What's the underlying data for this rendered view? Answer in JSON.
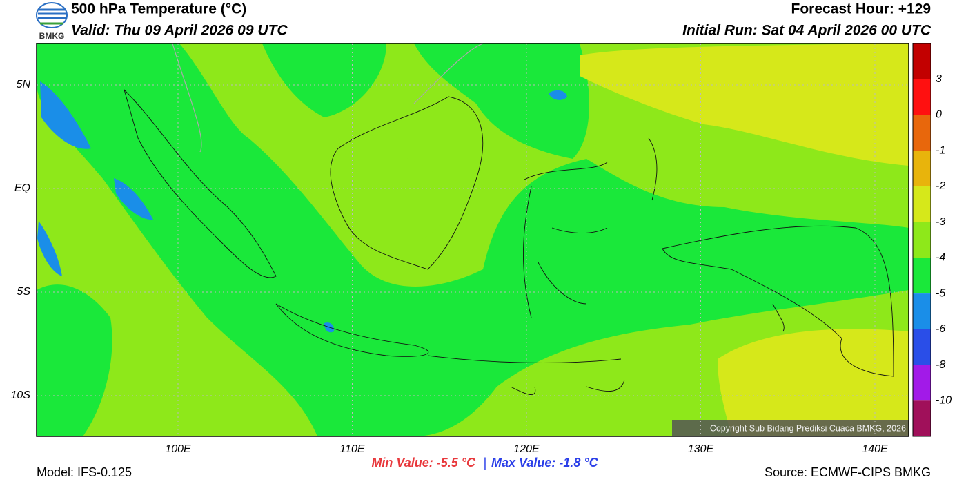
{
  "header": {
    "title": "500 hPa Temperature (°C)",
    "valid": "Valid: Thu 09 April 2026 09 UTC",
    "forecast_hour": "Forecast Hour: +129",
    "initial_run": "Initial Run: Sat 04 April 2026 00 UTC",
    "logo": "BMKG"
  },
  "map": {
    "lat_labels": [
      "5N",
      "EQ",
      "5S",
      "10S"
    ],
    "lon_labels": [
      "100E",
      "110E",
      "120E",
      "130E",
      "140E"
    ],
    "copyright": "Copyright Sub Bidang Prediksi Cuaca BMKG, 2026"
  },
  "colorbar": {
    "colors": [
      "#c20000",
      "#ff1010",
      "#e8670c",
      "#e8b40c",
      "#d6e81a",
      "#8ee81a",
      "#1ae83a",
      "#1a8ee8",
      "#2a4ee8",
      "#a21ae8",
      "#a0105a"
    ],
    "labels": [
      "3",
      "0",
      "-1",
      "-2",
      "-3",
      "-4",
      "-5",
      "-6",
      "-8",
      "-10"
    ]
  },
  "footer": {
    "model": "Model: IFS-0.125",
    "min": "Min Value: -5.5 °C",
    "separator": "|",
    "max": "Max Value: -1.8 °C",
    "source": "Source: ECMWF-CIPS BMKG"
  }
}
